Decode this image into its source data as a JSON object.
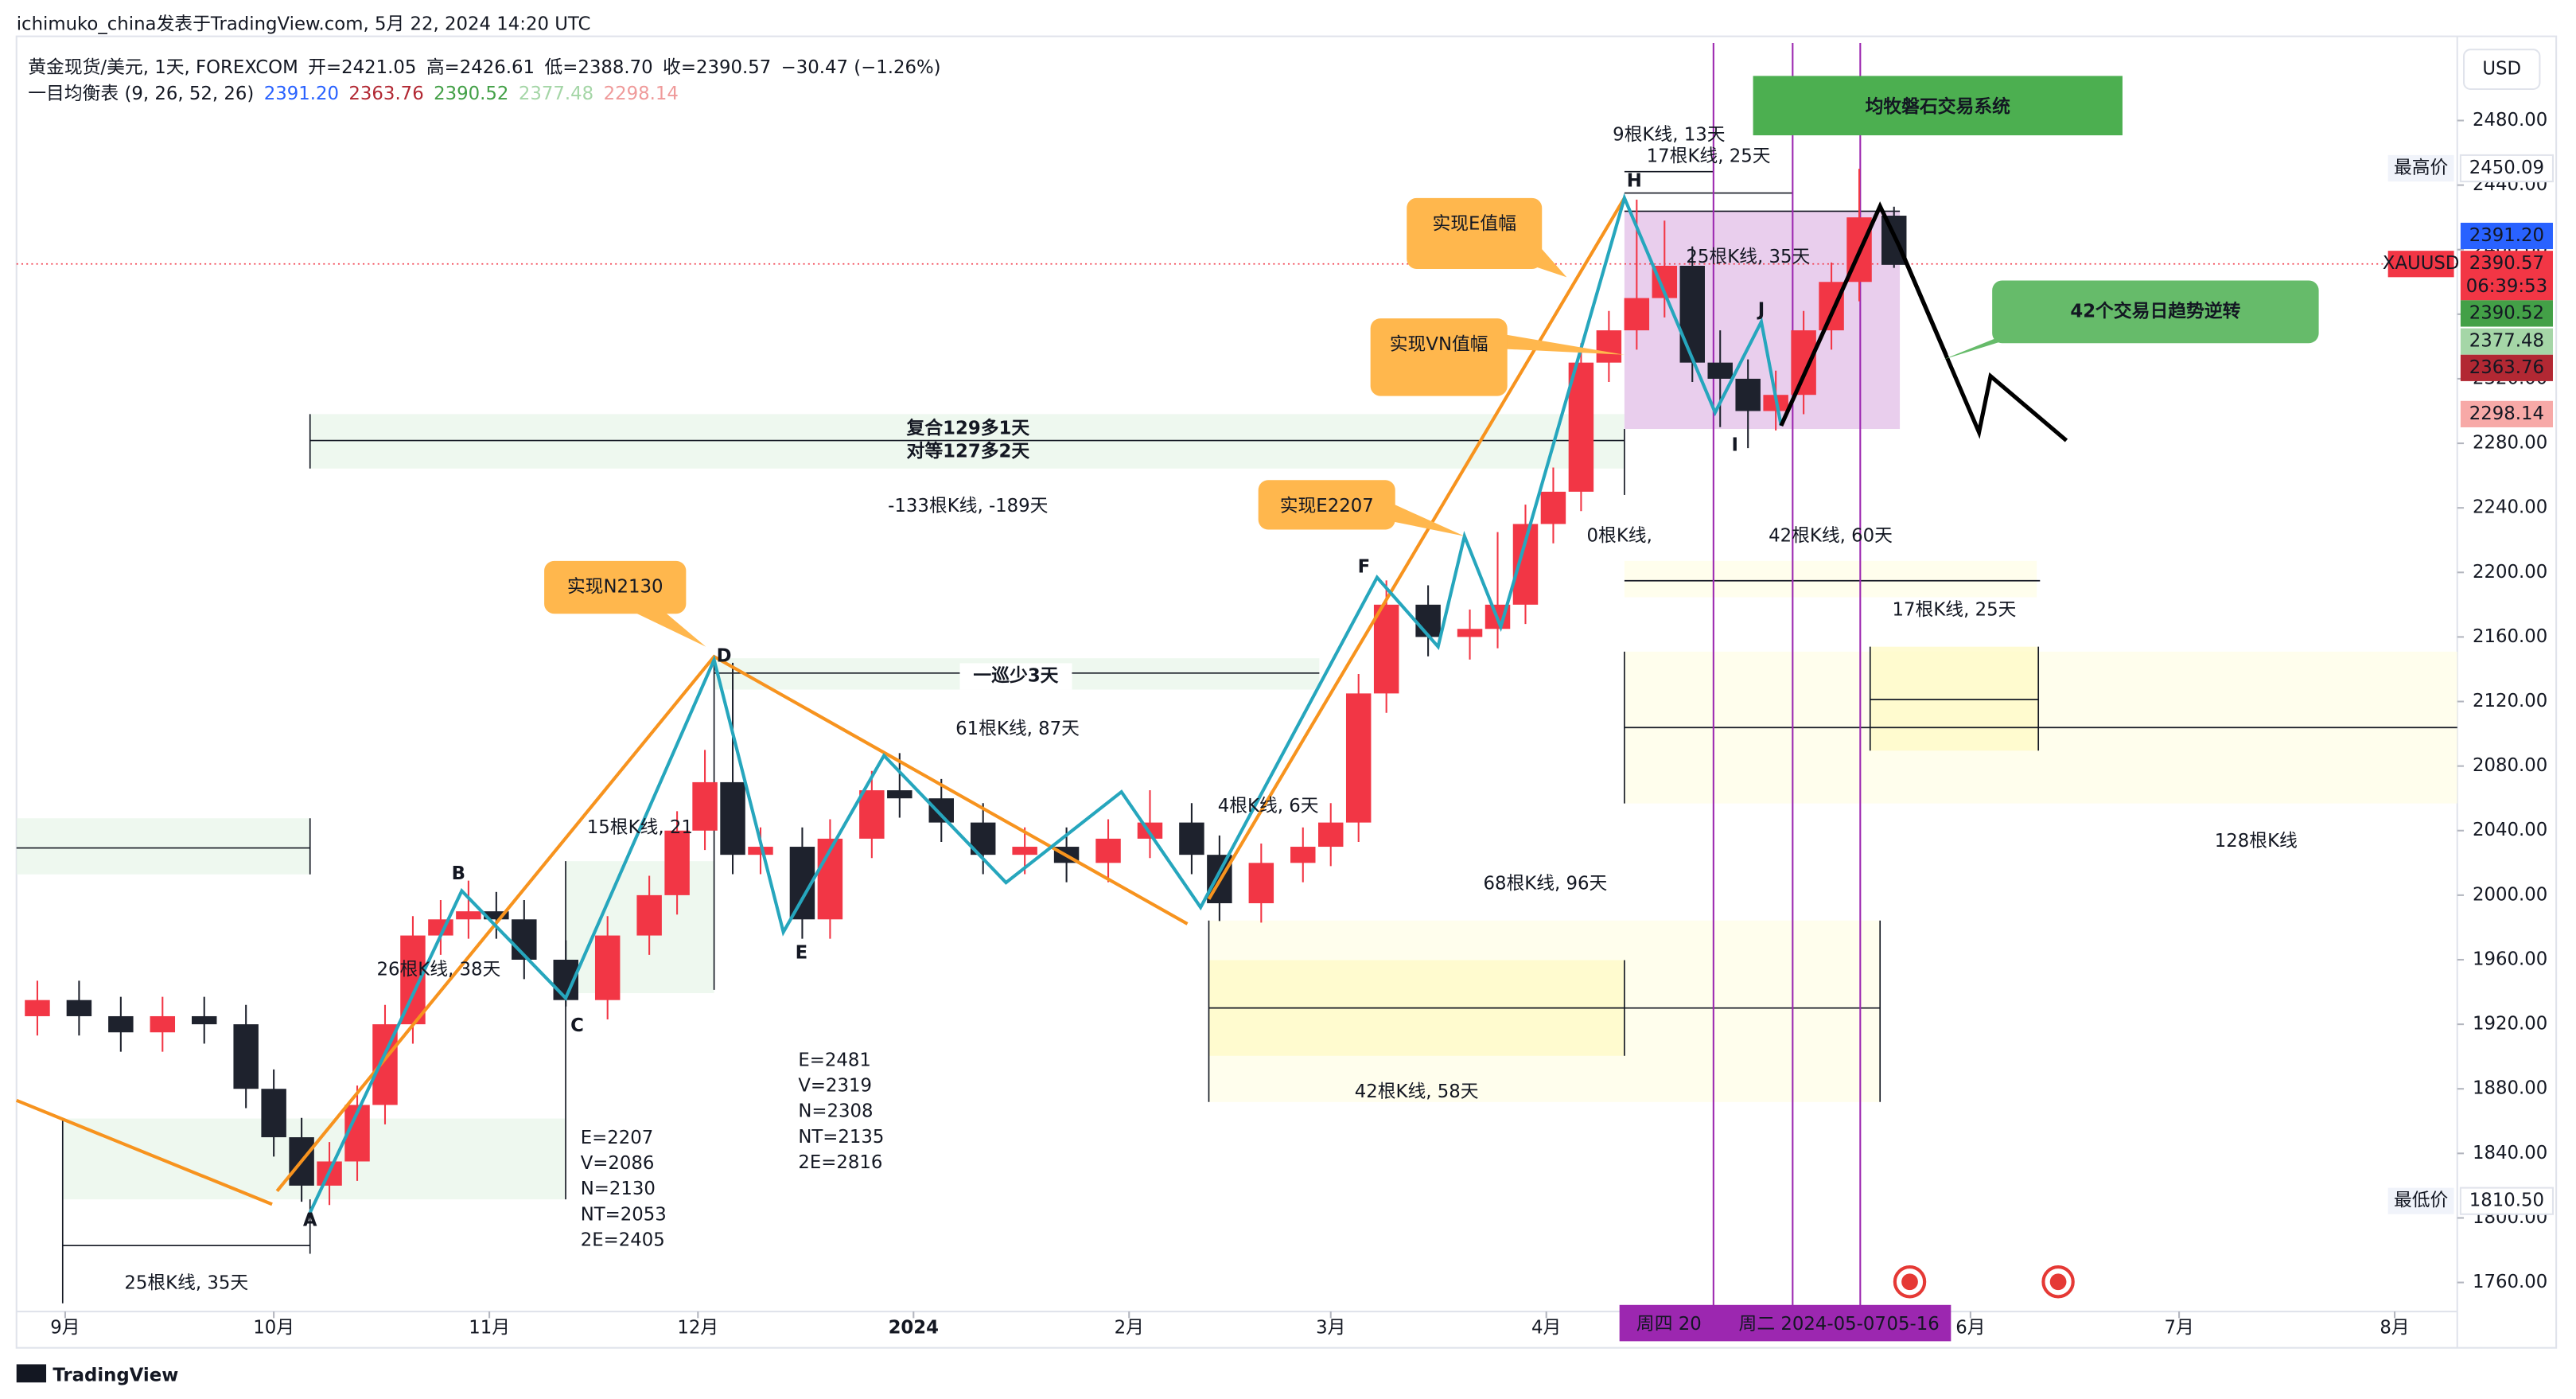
{
  "header": {
    "published": "ichimuko_china发表于TradingView.com, 5月 22, 2024 14:20 UTC",
    "symbol": "黄金现货/美元, 1天, FOREXCOM",
    "open": "开=2421.05",
    "high": "高=2426.61",
    "low": "低=2388.70",
    "close": "收=2390.57",
    "change": "−30.47 (−1.26%)",
    "indicator": "一目均衡表 (9, 26, 52, 26)",
    "indicator_values": [
      {
        "text": "2391.20",
        "color": "#2962ff"
      },
      {
        "text": "2363.76",
        "color": "#b22833"
      },
      {
        "text": "2390.52",
        "color": "#43a047"
      },
      {
        "text": "2377.48",
        "color": "#a5d6a7"
      },
      {
        "text": "2298.14",
        "color": "#ef9a9a"
      }
    ],
    "currency": "USD"
  },
  "chart_data": {
    "type": "candlestick",
    "up_color": "#f23645",
    "down_color": "#1e222d",
    "x": [
      -4,
      2,
      8,
      14,
      20,
      26,
      30,
      34,
      38,
      42,
      46,
      50,
      54,
      58,
      62,
      66,
      72,
      78,
      84,
      88,
      92,
      96,
      100,
      106,
      110,
      116,
      120,
      126,
      132,
      138,
      144,
      150,
      156,
      162,
      166,
      172,
      178,
      182,
      186,
      190,
      196,
      202,
      206,
      210,
      214,
      218,
      222,
      226,
      230,
      234,
      238,
      242,
      246,
      250,
      254,
      258,
      263
    ],
    "open": [
      1925,
      1935,
      1925,
      1915,
      1925,
      1920,
      1880,
      1850,
      1820,
      1835,
      1870,
      1920,
      1975,
      1985,
      1990,
      1985,
      1960,
      1935,
      1975,
      2000,
      2040,
      2070,
      2025,
      2030,
      1985,
      2035,
      2065,
      2060,
      2045,
      2025,
      2030,
      2020,
      2035,
      2045,
      2025,
      1995,
      2020,
      2030,
      2045,
      2125,
      2180,
      2160,
      2165,
      2180,
      2230,
      2250,
      2330,
      2350,
      2370,
      2390,
      2330,
      2320,
      2300,
      2310,
      2350,
      2380,
      2421.05
    ],
    "high": [
      1947,
      1947,
      1937,
      1937,
      1937,
      1932,
      1892,
      1862,
      1847,
      1882,
      1932,
      1987,
      1997,
      2009,
      2002,
      1997,
      1972,
      1987,
      2012,
      2052,
      2090,
      2144,
      2042,
      2042,
      2047,
      2077,
      2088,
      2072,
      2057,
      2042,
      2042,
      2047,
      2065,
      2057,
      2037,
      2032,
      2042,
      2057,
      2137,
      2195,
      2192,
      2177,
      2225,
      2242,
      2265,
      2342,
      2362,
      2431,
      2418,
      2402,
      2350,
      2332,
      2325,
      2362,
      2392,
      2450.09,
      2426.61
    ],
    "low": [
      1913,
      1913,
      1903,
      1903,
      1908,
      1868,
      1838,
      1810,
      1808,
      1823,
      1858,
      1908,
      1963,
      1973,
      1973,
      1948,
      1931,
      1923,
      1963,
      1988,
      2028,
      2013,
      2013,
      1973,
      1973,
      2023,
      2048,
      2033,
      2013,
      2013,
      2008,
      2008,
      2023,
      2013,
      1984,
      1983,
      2008,
      2018,
      2033,
      2113,
      2148,
      2146,
      2153,
      2168,
      2218,
      2238,
      2318,
      2338,
      2358,
      2318,
      2290,
      2277,
      2288,
      2298,
      2338,
      2368,
      2388.7
    ],
    "close": [
      1935,
      1925,
      1915,
      1925,
      1920,
      1880,
      1850,
      1820,
      1835,
      1870,
      1920,
      1975,
      1985,
      1990,
      1985,
      1960,
      1935,
      1975,
      2000,
      2040,
      2070,
      2025,
      2030,
      1985,
      2035,
      2065,
      2060,
      2045,
      2025,
      2030,
      2020,
      2035,
      2045,
      2025,
      1995,
      2020,
      2030,
      2045,
      2125,
      2180,
      2160,
      2165,
      2180,
      2230,
      2250,
      2330,
      2350,
      2370,
      2390,
      2330,
      2320,
      2300,
      2310,
      2350,
      2380,
      2420,
      2390.57
    ],
    "xlim": [
      -7,
      344
    ],
    "xticks": [
      {
        "value": 0,
        "label": "9月"
      },
      {
        "value": 30,
        "label": "10月"
      },
      {
        "value": 61,
        "label": "11月"
      },
      {
        "value": 91,
        "label": "12月"
      },
      {
        "value": 122,
        "label": "2024"
      },
      {
        "value": 153,
        "label": "2月"
      },
      {
        "value": 182,
        "label": "3月"
      },
      {
        "value": 213,
        "label": "4月"
      },
      {
        "value": 274,
        "label": "6月"
      },
      {
        "value": 304,
        "label": "7月"
      },
      {
        "value": 335,
        "label": "8月"
      }
    ],
    "ylim": [
      1742,
      2524
    ],
    "yticks": [
      {
        "value": 1760,
        "label": "1760.00"
      },
      {
        "value": 1800,
        "label": "1800.00"
      },
      {
        "value": 1840,
        "label": "1840.00"
      },
      {
        "value": 1880,
        "label": "1880.00"
      },
      {
        "value": 1920,
        "label": "1920.00"
      },
      {
        "value": 1960,
        "label": "1960.00"
      },
      {
        "value": 2000,
        "label": "2000.00"
      },
      {
        "value": 2040,
        "label": "2040.00"
      },
      {
        "value": 2080,
        "label": "2080.00"
      },
      {
        "value": 2120,
        "label": "2120.00"
      },
      {
        "value": 2160,
        "label": "2160.00"
      },
      {
        "value": 2200,
        "label": "2200.00"
      },
      {
        "value": 2240,
        "label": "2240.00"
      },
      {
        "value": 2280,
        "label": "2280.00"
      },
      {
        "value": 2320,
        "label": "2320.00"
      },
      {
        "value": 2360,
        "label": "2360.00"
      },
      {
        "value": 2400,
        "label": "2400.00"
      },
      {
        "value": 2440,
        "label": "2440.00"
      },
      {
        "value": 2480,
        "label": "2480.00"
      }
    ]
  },
  "price_labels": [
    {
      "text": "2450.09",
      "tag": "最高价",
      "bg": "#ffffff",
      "fg": "#131722"
    },
    {
      "text": "2391.20",
      "bg": "#2962ff",
      "fg": "#ffffff"
    },
    {
      "text": "2390.57",
      "tag": "XAUUSD",
      "sub": "06:39:53",
      "bg": "#f23645",
      "fg": "#ffffff"
    },
    {
      "text": "2390.52",
      "bg": "#43a047",
      "fg": "#ffffff"
    },
    {
      "text": "2377.48",
      "bg": "#a5d6a7",
      "fg": "#131722"
    },
    {
      "text": "2363.76",
      "bg": "#b22833",
      "fg": "#ffffff"
    },
    {
      "text": "2298.14",
      "bg": "#f7a9a7",
      "fg": "#131722"
    },
    {
      "text": "1810.50",
      "tag": "最低价",
      "bg": "#ffffff",
      "fg": "#131722"
    }
  ],
  "annotations": [
    "9根K线, 13天",
    "17根K线, 25天",
    "25根K线, 35天",
    "0根K线,",
    "42根K线, 60天",
    "17根K线, 25天",
    "128根K线",
    "-133根K线, -189天",
    "61根K线, 87天",
    "4根K线, 6天",
    "15根K线, 21",
    "26根K线, 38天",
    "68根K线, 96天",
    "42根K线, 58天",
    "25根K线, 35天",
    "复合129多1天",
    "对等127多2天",
    "一巡少3天"
  ],
  "point_labels": [
    "A",
    "B",
    "C",
    "D",
    "E",
    "F",
    "H",
    "I",
    "J"
  ],
  "targets": [
    [
      "E=2207",
      "V=2086",
      "N=2130",
      "NT=2053",
      "2E=2405"
    ],
    [
      "E=2481",
      "V=2319",
      "N=2308",
      "NT=2135",
      "2E=2816"
    ]
  ],
  "callouts": [
    "实现E值幅",
    "实现VN值幅",
    "实现E2207",
    "实现N2130"
  ],
  "banners": [
    "均牧磐石交易系统",
    "42个交易日趋势逆转"
  ],
  "date_tags": [
    "周四 20",
    "周二 2024-05-07",
    "05-16"
  ],
  "footer": "TradingView"
}
